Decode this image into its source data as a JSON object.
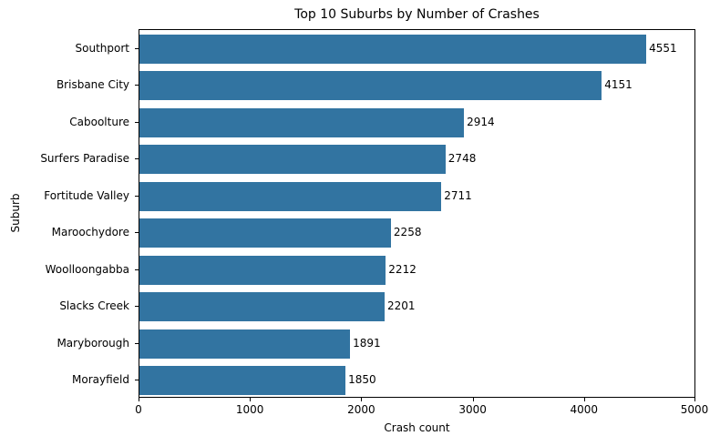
{
  "chart_data": {
    "type": "bar",
    "orientation": "horizontal",
    "title": "Top 10 Suburbs by Number of Crashes",
    "xlabel": "Crash count",
    "ylabel": "Suburb",
    "categories": [
      "Southport",
      "Brisbane City",
      "Caboolture",
      "Surfers Paradise",
      "Fortitude Valley",
      "Maroochydore",
      "Woolloongabba",
      "Slacks Creek",
      "Maryborough",
      "Morayfield"
    ],
    "values": [
      4551,
      4151,
      2914,
      2748,
      2711,
      2258,
      2212,
      2201,
      1891,
      1850
    ],
    "xlim": [
      0,
      5000
    ],
    "xticks": [
      "0",
      "1000",
      "2000",
      "3000",
      "4000",
      "5000"
    ],
    "grid": false,
    "bar_color": "#3274a1",
    "data_labels": true
  },
  "labels": {
    "title": "Top 10 Suburbs by Number of Crashes",
    "xlabel": "Crash count",
    "ylabel": "Suburb"
  }
}
